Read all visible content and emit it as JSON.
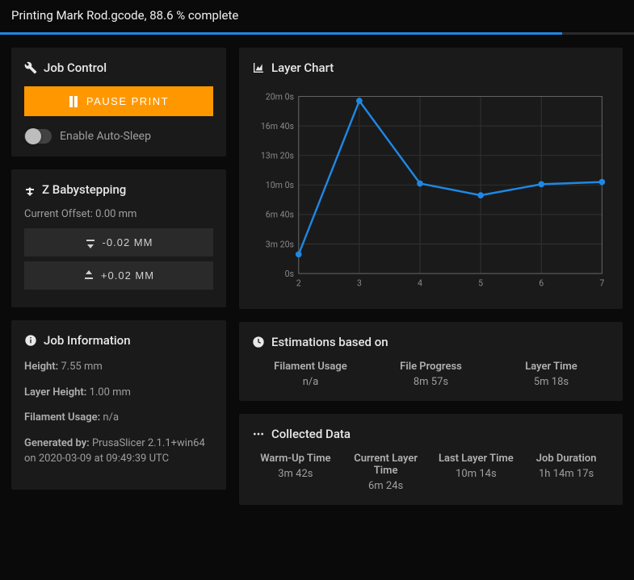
{
  "header": {
    "title": "Printing Mark Rod.gcode, 88.6 % complete"
  },
  "progress": {
    "percent": 88.6,
    "bar_color": "#1e88e5"
  },
  "job_control": {
    "title": "Job Control",
    "pause_label": "PAUSE PRINT",
    "button_color": "#ff9800",
    "toggle_label": "Enable Auto-Sleep",
    "toggle_on": false
  },
  "babystep": {
    "title": "Z Babystepping",
    "offset_label": "Current Offset: 0.00 mm",
    "down_label": "-0.02 MM",
    "up_label": "+0.02 MM"
  },
  "job_info": {
    "title": "Job Information",
    "height_label": "Height:",
    "height_value": "7.55 mm",
    "layer_height_label": "Layer Height:",
    "layer_height_value": "1.00 mm",
    "filament_label": "Filament Usage:",
    "filament_value": "n/a",
    "generated_label": "Generated by:",
    "generated_value": "PrusaSlicer 2.1.1+win64 on 2020-03-09 at 09:49:39 UTC"
  },
  "layer_chart": {
    "title": "Layer Chart",
    "type": "line",
    "x_values": [
      2,
      3,
      4,
      5,
      6,
      7
    ],
    "y_seconds": [
      130,
      1170,
      610,
      530,
      605,
      620
    ],
    "y_ticks": [
      0,
      200,
      400,
      600,
      800,
      1000,
      1200
    ],
    "y_tick_labels": [
      "0s",
      "3m 20s",
      "6m 40s",
      "10m 0s",
      "13m 20s",
      "16m 40s",
      "20m 0s"
    ],
    "x_ticks": [
      2,
      3,
      4,
      5,
      6,
      7
    ],
    "line_color": "#1e88e5",
    "line_width": 2.5,
    "marker_radius": 4,
    "grid_color": "#333333",
    "axis_color": "#666666",
    "background_color": "#1a1a1a",
    "xlim": [
      2,
      7
    ],
    "ylim": [
      0,
      1200
    ]
  },
  "estimations": {
    "title": "Estimations based on",
    "cols": [
      {
        "label": "Filament Usage",
        "value": "n/a"
      },
      {
        "label": "File Progress",
        "value": "8m 57s"
      },
      {
        "label": "Layer Time",
        "value": "5m 18s"
      }
    ]
  },
  "collected": {
    "title": "Collected Data",
    "cols": [
      {
        "label": "Warm-Up Time",
        "value": "3m 42s"
      },
      {
        "label": "Current Layer Time",
        "value": "6m 24s"
      },
      {
        "label": "Last Layer Time",
        "value": "10m 14s"
      },
      {
        "label": "Job Duration",
        "value": "1h 14m 17s"
      }
    ]
  }
}
